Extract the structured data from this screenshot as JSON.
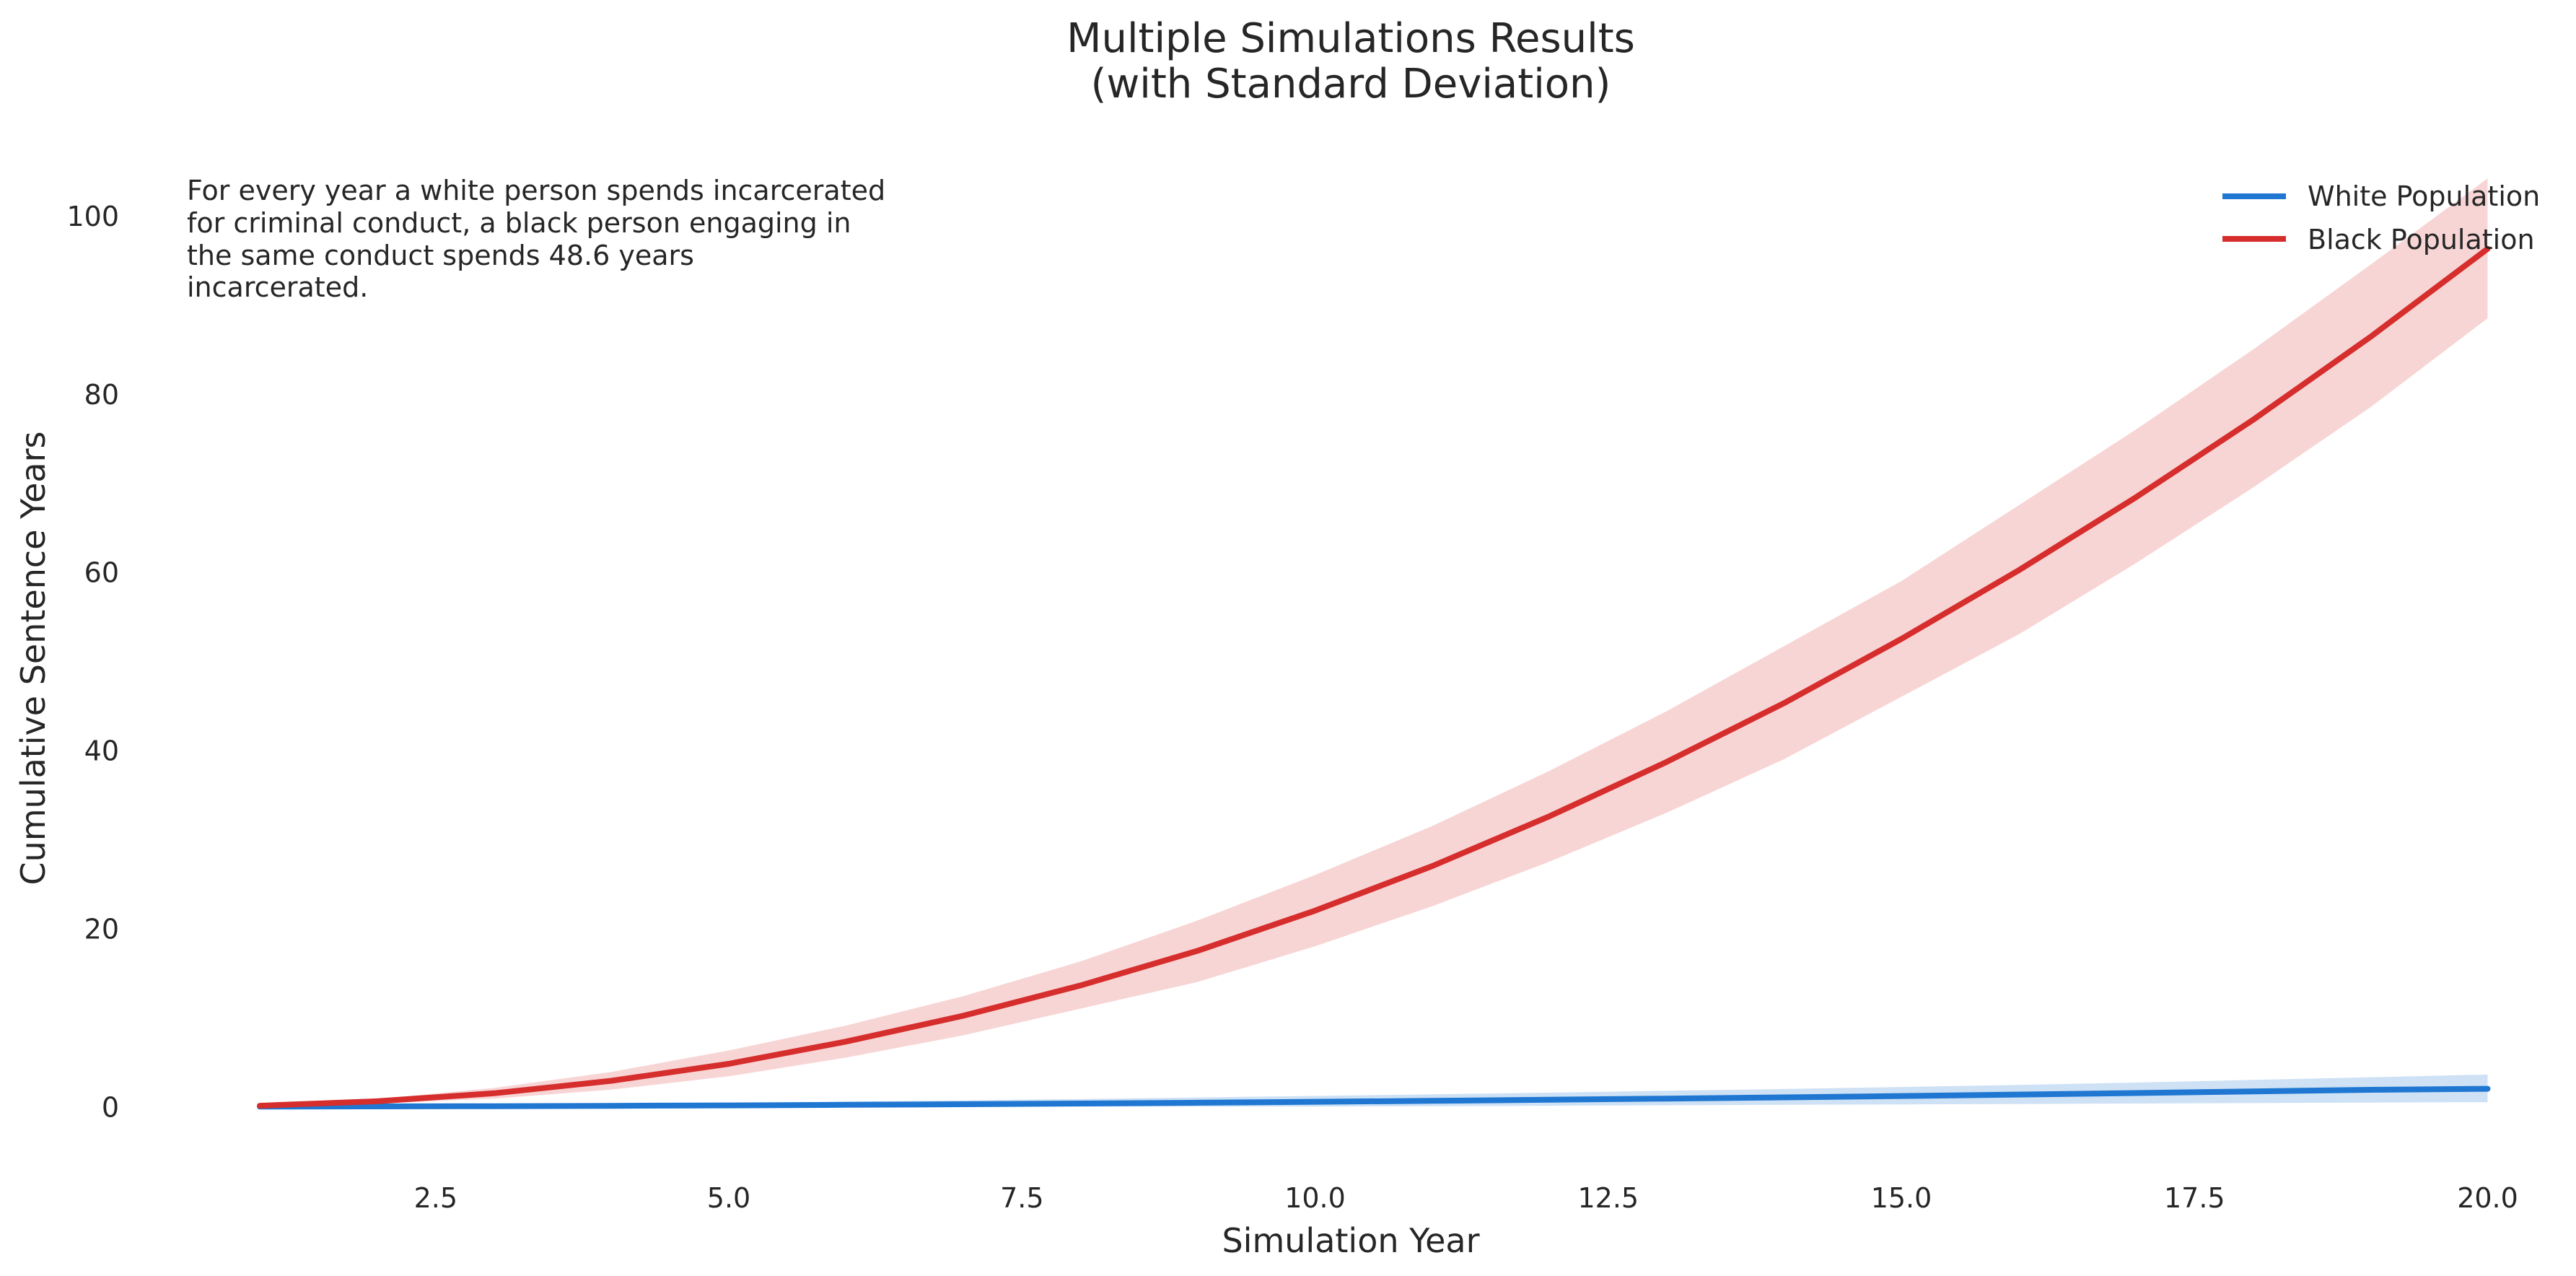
{
  "chart_data": {
    "type": "line",
    "title_line1": "Multiple Simulations Results",
    "title_line2": "(with Standard Deviation)",
    "xlabel": "Simulation Year",
    "ylabel": "Cumulative Sentence Years",
    "xlim": [
      0.2,
      20.2
    ],
    "ylim": [
      -5,
      106
    ],
    "xticks": [
      2.5,
      5.0,
      7.5,
      10.0,
      12.5,
      15.0,
      17.5,
      20.0
    ],
    "xtick_labels": [
      "2.5",
      "5.0",
      "7.5",
      "10.0",
      "12.5",
      "15.0",
      "17.5",
      "20.0"
    ],
    "yticks": [
      0,
      20,
      40,
      60,
      80,
      100
    ],
    "ytick_labels": [
      "0",
      "20",
      "40",
      "60",
      "80",
      "100"
    ],
    "grid": false,
    "legend_position": "top-right",
    "annotation_lines": [
      "For every year a white person spends incarcerated",
      "for criminal conduct, a black person engaging in",
      "the same conduct spends 48.6 years",
      "incarcerated."
    ],
    "x": [
      1,
      2,
      3,
      4,
      5,
      6,
      7,
      8,
      9,
      10,
      11,
      12,
      13,
      14,
      15,
      16,
      17,
      18,
      19,
      20
    ],
    "series": [
      {
        "name": "White Population",
        "color": "#1f77d2",
        "band_color": "#1f77d2",
        "values": [
          0.0,
          0.02,
          0.05,
          0.09,
          0.14,
          0.2,
          0.27,
          0.35,
          0.44,
          0.54,
          0.65,
          0.77,
          0.9,
          1.04,
          1.19,
          1.35,
          1.52,
          1.7,
          1.89,
          2.0
        ],
        "lower": [
          0.0,
          0.0,
          0.0,
          0.0,
          0.0,
          0.0,
          0.0,
          0.0,
          0.0,
          0.0,
          0.05,
          0.1,
          0.15,
          0.2,
          0.25,
          0.3,
          0.35,
          0.4,
          0.45,
          0.5
        ],
        "upper": [
          0.0,
          0.1,
          0.2,
          0.3,
          0.42,
          0.55,
          0.7,
          0.86,
          1.03,
          1.2,
          1.38,
          1.57,
          1.77,
          1.98,
          2.2,
          2.43,
          2.7,
          3.0,
          3.3,
          3.6
        ]
      },
      {
        "name": "Black Population",
        "color": "#d62d2d",
        "band_color": "#e98080",
        "values": [
          0.1,
          0.6,
          1.5,
          2.9,
          4.8,
          7.3,
          10.2,
          13.6,
          17.5,
          22.0,
          27.0,
          32.6,
          38.7,
          45.3,
          52.5,
          60.2,
          68.4,
          77.1,
          86.4,
          96.3
        ],
        "lower": [
          0.05,
          0.35,
          0.9,
          1.9,
          3.4,
          5.5,
          8.0,
          11.0,
          14.0,
          18.0,
          22.5,
          27.5,
          33.0,
          39.0,
          46.0,
          53.0,
          61.0,
          69.5,
          78.5,
          88.5
        ],
        "upper": [
          0.15,
          0.85,
          2.1,
          3.9,
          6.3,
          9.1,
          12.4,
          16.3,
          20.9,
          26.0,
          31.5,
          37.7,
          44.4,
          51.7,
          59.0,
          67.5,
          76.0,
          85.0,
          94.5,
          104.2
        ]
      }
    ]
  }
}
